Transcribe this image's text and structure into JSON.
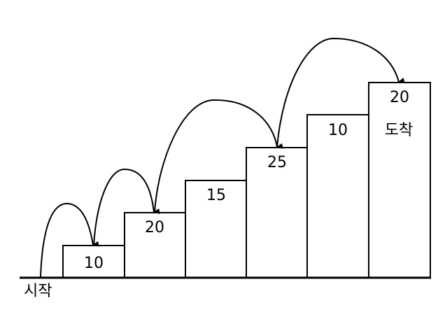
{
  "diagram": {
    "start_label": "시작",
    "end_label": "도착",
    "steps": [
      {
        "value": "10"
      },
      {
        "value": "20"
      },
      {
        "value": "15"
      },
      {
        "value": "25"
      },
      {
        "value": "10"
      },
      {
        "value": "20"
      }
    ]
  }
}
